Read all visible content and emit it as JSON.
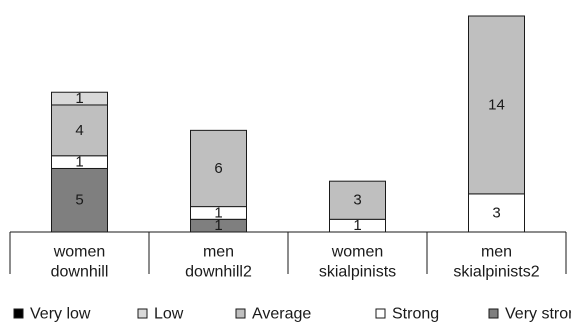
{
  "chart_data": {
    "type": "bar",
    "stacked": true,
    "title": "",
    "xlabel": "",
    "ylabel": "",
    "ylim": [
      0,
      17
    ],
    "grid": false,
    "legend_position": "bottom",
    "categories": [
      [
        "women",
        "downhill"
      ],
      [
        "men",
        "downhill2"
      ],
      [
        "women",
        "skialpinists"
      ],
      [
        "men",
        "skialpinists2"
      ]
    ],
    "series": [
      {
        "name": "Very low",
        "color": "#000000",
        "values": [
          0,
          0,
          0,
          0
        ]
      },
      {
        "name": "Very strong",
        "color": "#7f7f7f",
        "values": [
          5,
          1,
          0,
          0
        ]
      },
      {
        "name": "Strong",
        "color": "#ffffff",
        "values": [
          1,
          1,
          1,
          3
        ]
      },
      {
        "name": "Average",
        "color": "#bfbfbf",
        "values": [
          4,
          6,
          3,
          14
        ]
      },
      {
        "name": "Low",
        "color": "#d9d9d9",
        "values": [
          1,
          0,
          0,
          0
        ]
      }
    ],
    "legend_order": [
      "Very low",
      "Low",
      "Average",
      "Strong",
      "Very strong"
    ]
  }
}
